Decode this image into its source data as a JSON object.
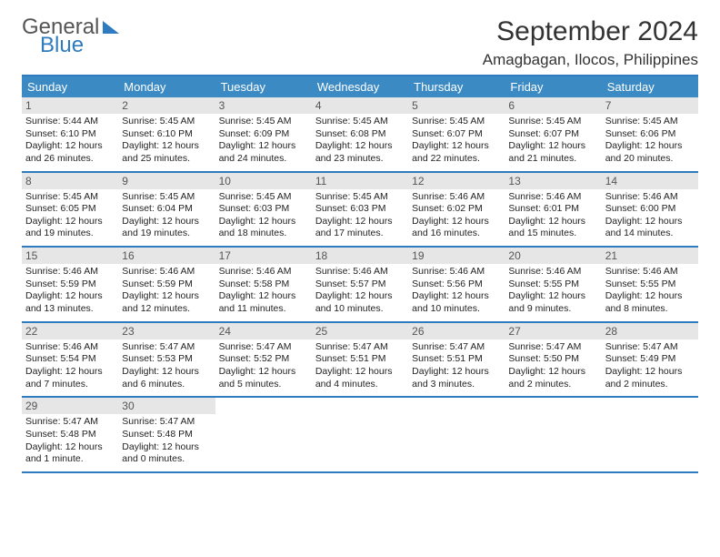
{
  "logo": {
    "text1": "General",
    "text2": "Blue"
  },
  "title": "September 2024",
  "location": "Amagbagan, Ilocos, Philippines",
  "colors": {
    "brand_blue": "#2f7bbf",
    "header_blue": "#3b8ac4",
    "daynum_bg": "#e6e6e6",
    "text_dark": "#333333",
    "text_grey": "#555555"
  },
  "weekdays": [
    "Sunday",
    "Monday",
    "Tuesday",
    "Wednesday",
    "Thursday",
    "Friday",
    "Saturday"
  ],
  "days": [
    {
      "n": "1",
      "sr": "Sunrise: 5:44 AM",
      "ss": "Sunset: 6:10 PM",
      "d1": "Daylight: 12 hours",
      "d2": "and 26 minutes."
    },
    {
      "n": "2",
      "sr": "Sunrise: 5:45 AM",
      "ss": "Sunset: 6:10 PM",
      "d1": "Daylight: 12 hours",
      "d2": "and 25 minutes."
    },
    {
      "n": "3",
      "sr": "Sunrise: 5:45 AM",
      "ss": "Sunset: 6:09 PM",
      "d1": "Daylight: 12 hours",
      "d2": "and 24 minutes."
    },
    {
      "n": "4",
      "sr": "Sunrise: 5:45 AM",
      "ss": "Sunset: 6:08 PM",
      "d1": "Daylight: 12 hours",
      "d2": "and 23 minutes."
    },
    {
      "n": "5",
      "sr": "Sunrise: 5:45 AM",
      "ss": "Sunset: 6:07 PM",
      "d1": "Daylight: 12 hours",
      "d2": "and 22 minutes."
    },
    {
      "n": "6",
      "sr": "Sunrise: 5:45 AM",
      "ss": "Sunset: 6:07 PM",
      "d1": "Daylight: 12 hours",
      "d2": "and 21 minutes."
    },
    {
      "n": "7",
      "sr": "Sunrise: 5:45 AM",
      "ss": "Sunset: 6:06 PM",
      "d1": "Daylight: 12 hours",
      "d2": "and 20 minutes."
    },
    {
      "n": "8",
      "sr": "Sunrise: 5:45 AM",
      "ss": "Sunset: 6:05 PM",
      "d1": "Daylight: 12 hours",
      "d2": "and 19 minutes."
    },
    {
      "n": "9",
      "sr": "Sunrise: 5:45 AM",
      "ss": "Sunset: 6:04 PM",
      "d1": "Daylight: 12 hours",
      "d2": "and 19 minutes."
    },
    {
      "n": "10",
      "sr": "Sunrise: 5:45 AM",
      "ss": "Sunset: 6:03 PM",
      "d1": "Daylight: 12 hours",
      "d2": "and 18 minutes."
    },
    {
      "n": "11",
      "sr": "Sunrise: 5:45 AM",
      "ss": "Sunset: 6:03 PM",
      "d1": "Daylight: 12 hours",
      "d2": "and 17 minutes."
    },
    {
      "n": "12",
      "sr": "Sunrise: 5:46 AM",
      "ss": "Sunset: 6:02 PM",
      "d1": "Daylight: 12 hours",
      "d2": "and 16 minutes."
    },
    {
      "n": "13",
      "sr": "Sunrise: 5:46 AM",
      "ss": "Sunset: 6:01 PM",
      "d1": "Daylight: 12 hours",
      "d2": "and 15 minutes."
    },
    {
      "n": "14",
      "sr": "Sunrise: 5:46 AM",
      "ss": "Sunset: 6:00 PM",
      "d1": "Daylight: 12 hours",
      "d2": "and 14 minutes."
    },
    {
      "n": "15",
      "sr": "Sunrise: 5:46 AM",
      "ss": "Sunset: 5:59 PM",
      "d1": "Daylight: 12 hours",
      "d2": "and 13 minutes."
    },
    {
      "n": "16",
      "sr": "Sunrise: 5:46 AM",
      "ss": "Sunset: 5:59 PM",
      "d1": "Daylight: 12 hours",
      "d2": "and 12 minutes."
    },
    {
      "n": "17",
      "sr": "Sunrise: 5:46 AM",
      "ss": "Sunset: 5:58 PM",
      "d1": "Daylight: 12 hours",
      "d2": "and 11 minutes."
    },
    {
      "n": "18",
      "sr": "Sunrise: 5:46 AM",
      "ss": "Sunset: 5:57 PM",
      "d1": "Daylight: 12 hours",
      "d2": "and 10 minutes."
    },
    {
      "n": "19",
      "sr": "Sunrise: 5:46 AM",
      "ss": "Sunset: 5:56 PM",
      "d1": "Daylight: 12 hours",
      "d2": "and 10 minutes."
    },
    {
      "n": "20",
      "sr": "Sunrise: 5:46 AM",
      "ss": "Sunset: 5:55 PM",
      "d1": "Daylight: 12 hours",
      "d2": "and 9 minutes."
    },
    {
      "n": "21",
      "sr": "Sunrise: 5:46 AM",
      "ss": "Sunset: 5:55 PM",
      "d1": "Daylight: 12 hours",
      "d2": "and 8 minutes."
    },
    {
      "n": "22",
      "sr": "Sunrise: 5:46 AM",
      "ss": "Sunset: 5:54 PM",
      "d1": "Daylight: 12 hours",
      "d2": "and 7 minutes."
    },
    {
      "n": "23",
      "sr": "Sunrise: 5:47 AM",
      "ss": "Sunset: 5:53 PM",
      "d1": "Daylight: 12 hours",
      "d2": "and 6 minutes."
    },
    {
      "n": "24",
      "sr": "Sunrise: 5:47 AM",
      "ss": "Sunset: 5:52 PM",
      "d1": "Daylight: 12 hours",
      "d2": "and 5 minutes."
    },
    {
      "n": "25",
      "sr": "Sunrise: 5:47 AM",
      "ss": "Sunset: 5:51 PM",
      "d1": "Daylight: 12 hours",
      "d2": "and 4 minutes."
    },
    {
      "n": "26",
      "sr": "Sunrise: 5:47 AM",
      "ss": "Sunset: 5:51 PM",
      "d1": "Daylight: 12 hours",
      "d2": "and 3 minutes."
    },
    {
      "n": "27",
      "sr": "Sunrise: 5:47 AM",
      "ss": "Sunset: 5:50 PM",
      "d1": "Daylight: 12 hours",
      "d2": "and 2 minutes."
    },
    {
      "n": "28",
      "sr": "Sunrise: 5:47 AM",
      "ss": "Sunset: 5:49 PM",
      "d1": "Daylight: 12 hours",
      "d2": "and 2 minutes."
    },
    {
      "n": "29",
      "sr": "Sunrise: 5:47 AM",
      "ss": "Sunset: 5:48 PM",
      "d1": "Daylight: 12 hours",
      "d2": "and 1 minute."
    },
    {
      "n": "30",
      "sr": "Sunrise: 5:47 AM",
      "ss": "Sunset: 5:48 PM",
      "d1": "Daylight: 12 hours",
      "d2": "and 0 minutes."
    }
  ]
}
